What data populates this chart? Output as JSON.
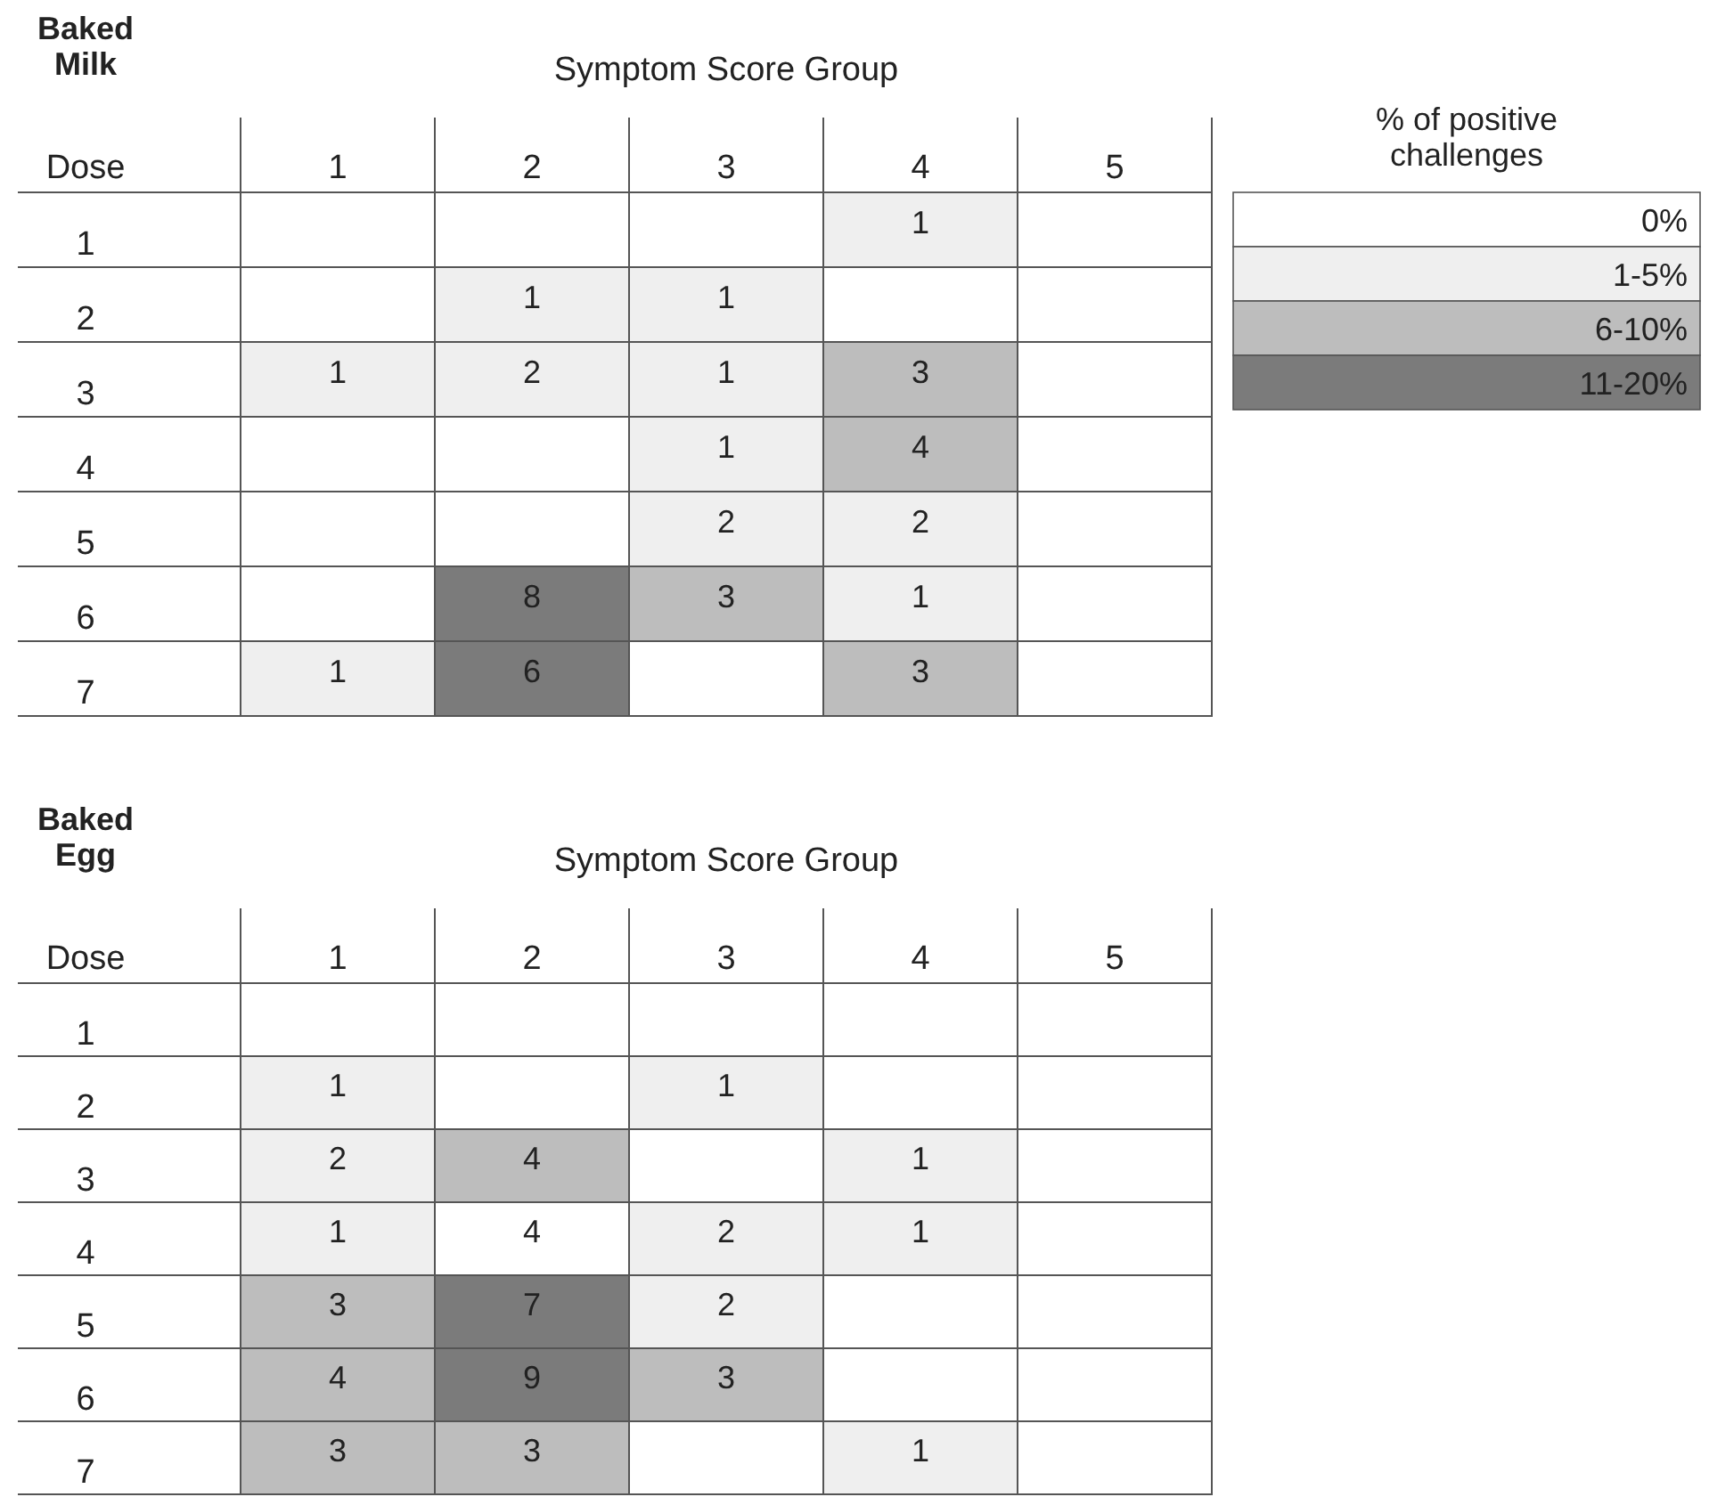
{
  "chart_data": [
    {
      "type": "heatmap",
      "title": "Baked Milk",
      "xlabel": "Symptom Score Group",
      "ylabel": "Dose",
      "categories": [
        "1",
        "2",
        "3",
        "4",
        "5"
      ],
      "y_categories": [
        "1",
        "2",
        "3",
        "4",
        "5",
        "6",
        "7"
      ],
      "cells": [
        [
          null,
          null,
          null,
          1,
          null
        ],
        [
          null,
          1,
          1,
          null,
          null
        ],
        [
          1,
          2,
          1,
          3,
          null
        ],
        [
          null,
          null,
          1,
          4,
          null
        ],
        [
          null,
          null,
          2,
          2,
          null
        ],
        [
          null,
          8,
          3,
          1,
          null
        ],
        [
          1,
          6,
          null,
          3,
          null
        ]
      ],
      "colors": [
        [
          "#ffffff",
          "#ffffff",
          "#ffffff",
          "#efefef",
          "#ffffff"
        ],
        [
          "#ffffff",
          "#efefef",
          "#efefef",
          "#ffffff",
          "#ffffff"
        ],
        [
          "#efefef",
          "#efefef",
          "#efefef",
          "#bdbdbd",
          "#ffffff"
        ],
        [
          "#ffffff",
          "#ffffff",
          "#efefef",
          "#bdbdbd",
          "#ffffff"
        ],
        [
          "#ffffff",
          "#ffffff",
          "#efefef",
          "#efefef",
          "#ffffff"
        ],
        [
          "#ffffff",
          "#7b7b7b",
          "#bdbdbd",
          "#efefef",
          "#ffffff"
        ],
        [
          "#efefef",
          "#7b7b7b",
          "#ffffff",
          "#bdbdbd",
          "#ffffff"
        ]
      ],
      "data_labels": true
    },
    {
      "type": "other",
      "title": "% of positive challenges",
      "categories": [
        "0%",
        "1-5%",
        "6-10%",
        "11-20%"
      ],
      "colors": [
        "#ffffff",
        "#efefef",
        "#bdbdbd",
        "#7b7b7b"
      ]
    },
    {
      "type": "heatmap",
      "title": "Baked Egg",
      "xlabel": "Symptom Score Group",
      "ylabel": "Dose",
      "categories": [
        "1",
        "2",
        "3",
        "4",
        "5"
      ],
      "y_categories": [
        "1",
        "2",
        "3",
        "4",
        "5",
        "6",
        "7"
      ],
      "cells": [
        [
          null,
          null,
          null,
          null,
          null
        ],
        [
          1,
          null,
          1,
          null,
          null
        ],
        [
          2,
          4,
          null,
          1,
          null
        ],
        [
          1,
          4,
          2,
          1,
          null
        ],
        [
          3,
          7,
          2,
          null,
          null
        ],
        [
          4,
          9,
          3,
          null,
          null
        ],
        [
          3,
          3,
          null,
          1,
          null
        ]
      ],
      "colors": [
        [
          "#ffffff",
          "#ffffff",
          "#ffffff",
          "#ffffff",
          "#ffffff"
        ],
        [
          "#efefef",
          "#ffffff",
          "#efefef",
          "#ffffff",
          "#ffffff"
        ],
        [
          "#efefef",
          "#bdbdbd",
          "#ffffff",
          "#efefef",
          "#ffffff"
        ],
        [
          "#efefef",
          "#ffffff",
          "#efefef",
          "#efefef",
          "#ffffff"
        ],
        [
          "#bdbdbd",
          "#7b7b7b",
          "#efefef",
          "#ffffff",
          "#ffffff"
        ],
        [
          "#bdbdbd",
          "#7b7b7b",
          "#bdbdbd",
          "#ffffff",
          "#ffffff"
        ],
        [
          "#bdbdbd",
          "#bdbdbd",
          "#ffffff",
          "#efefef",
          "#ffffff"
        ]
      ],
      "data_labels": true
    }
  ]
}
